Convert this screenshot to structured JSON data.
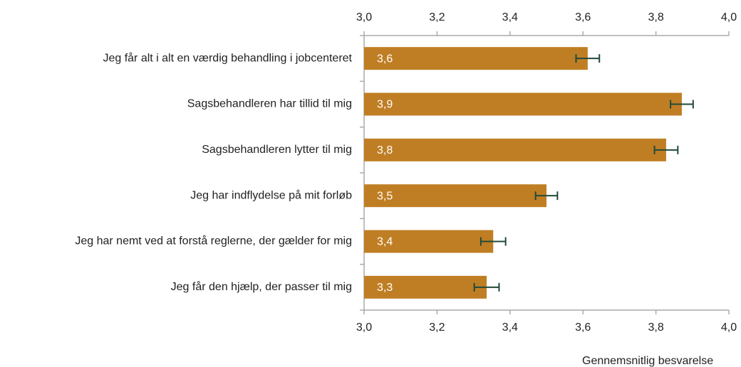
{
  "chart_data": {
    "type": "bar",
    "orientation": "horizontal",
    "categories": [
      "Jeg får alt i alt en værdig behandling i jobcenteret",
      "Sagsbehandleren har tillid til mig",
      "Sagsbehandleren lytter til mig",
      "Jeg har indflydelse på mit forløb",
      "Jeg har nemt ved at forstå reglerne, der gælder for mig",
      "Jeg får den hjælp, der passer til mig"
    ],
    "values": [
      3.613,
      3.871,
      3.828,
      3.5,
      3.354,
      3.336
    ],
    "value_labels": [
      "3,6",
      "3,9",
      "3,8",
      "3,5",
      "3,4",
      "3,3"
    ],
    "errors": [
      0.032,
      0.031,
      0.032,
      0.03,
      0.034,
      0.034
    ],
    "color": "#c07e24",
    "error_color": "#1f4a3a",
    "xlim": [
      3.0,
      4.0
    ],
    "xticks": [
      {
        "value": 3.0,
        "label": "3,0"
      },
      {
        "value": 3.2,
        "label": "3,2"
      },
      {
        "value": 3.4,
        "label": "3,4"
      },
      {
        "value": 3.6,
        "label": "3,6"
      },
      {
        "value": 3.8,
        "label": "3,8"
      },
      {
        "value": 4.0,
        "label": "4,0"
      }
    ],
    "x_label": "Gennemsnitlig besvarelse"
  }
}
